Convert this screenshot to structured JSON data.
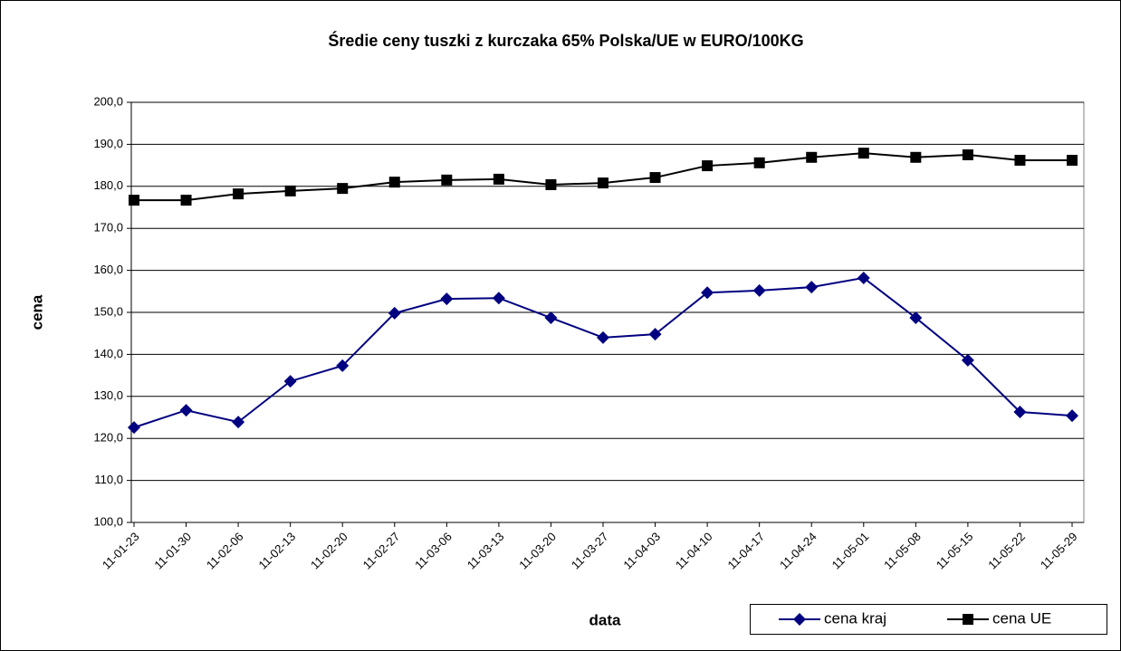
{
  "chart_data": {
    "type": "line",
    "title": "Średie ceny tuszki z kurczaka 65% Polska/UE w EURO/100KG",
    "x_label": "data",
    "y_label": "cena",
    "categories": [
      "11-01-23",
      "11-01-30",
      "11-02-06",
      "11-02-13",
      "11-02-20",
      "11-02-27",
      "11-03-06",
      "11-03-13",
      "11-03-20",
      "11-03-27",
      "11-04-03",
      "11-04-10",
      "11-04-17",
      "11-04-24",
      "11-05-01",
      "11-05-08",
      "11-05-15",
      "11-05-22",
      "11-05-29"
    ],
    "series": [
      {
        "name": "cena kraj",
        "color": "#000080",
        "marker": "diamond",
        "values": [
          122.6,
          126.7,
          123.9,
          133.6,
          137.3,
          149.8,
          153.2,
          153.4,
          148.7,
          144.0,
          144.8,
          154.7,
          155.2,
          156.0,
          158.2,
          148.7,
          138.6,
          126.3,
          125.4
        ]
      },
      {
        "name": "cena UE",
        "color": "#000000",
        "marker": "square",
        "values": [
          176.7,
          176.7,
          178.2,
          178.9,
          179.5,
          181.0,
          181.5,
          181.7,
          180.4,
          180.8,
          182.1,
          184.9,
          185.6,
          186.9,
          187.9,
          186.9,
          187.5,
          186.2,
          186.2
        ]
      }
    ],
    "ylim": [
      100,
      200
    ],
    "yticks": [
      {
        "value": 100,
        "label": "100,0"
      },
      {
        "value": 110,
        "label": "110,0"
      },
      {
        "value": 120,
        "label": "120,0"
      },
      {
        "value": 130,
        "label": "130,0"
      },
      {
        "value": 140,
        "label": "140,0"
      },
      {
        "value": 150,
        "label": "150,0"
      },
      {
        "value": 160,
        "label": "160,0"
      },
      {
        "value": 170,
        "label": "170,0"
      },
      {
        "value": 180,
        "label": "180,0"
      },
      {
        "value": 190,
        "label": "190,0"
      },
      {
        "value": 200,
        "label": "200,0"
      }
    ],
    "grid": true,
    "legend": "bottom-right"
  }
}
